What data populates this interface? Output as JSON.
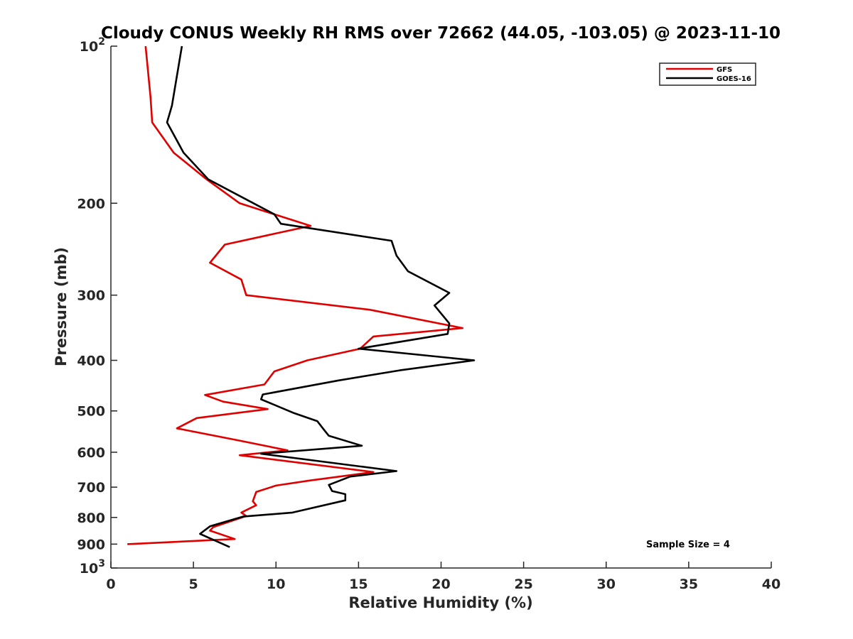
{
  "chart_data": {
    "type": "line",
    "title": "Cloudy CONUS Weekly RH RMS over 72662 (44.05, -103.05) @ 2023-11-10",
    "xlabel": "Relative Humidity (%)",
    "ylabel": "Pressure (mb)",
    "xlim": [
      0,
      40
    ],
    "ylim": [
      100,
      1000
    ],
    "y_scale": "log",
    "y_reversed": true,
    "x_ticks": [
      0,
      5,
      10,
      15,
      20,
      25,
      30,
      35,
      40
    ],
    "x_tick_labels": [
      "0",
      "5",
      "10",
      "15",
      "20",
      "25",
      "30",
      "35",
      "40"
    ],
    "y_ticks": [
      100,
      200,
      300,
      400,
      500,
      600,
      700,
      800,
      900,
      1000
    ],
    "y_tick_labels": [
      {
        "base": "10",
        "exp": "2"
      },
      {
        "base": "200",
        "exp": ""
      },
      {
        "base": "300",
        "exp": ""
      },
      {
        "base": "400",
        "exp": ""
      },
      {
        "base": "500",
        "exp": ""
      },
      {
        "base": "600",
        "exp": ""
      },
      {
        "base": "700",
        "exp": ""
      },
      {
        "base": "800",
        "exp": ""
      },
      {
        "base": "900",
        "exp": ""
      },
      {
        "base": "10",
        "exp": "3"
      }
    ],
    "grid": false,
    "legend_position": "top-right",
    "annotation": "Sample Size = 4",
    "series": [
      {
        "name": "GFS",
        "color": "#e00000",
        "points": [
          [
            2.1,
            100
          ],
          [
            2.4,
            125
          ],
          [
            2.5,
            140
          ],
          [
            3.8,
            160
          ],
          [
            5.8,
            180
          ],
          [
            7.8,
            200
          ],
          [
            12.1,
            221
          ],
          [
            6.9,
            240
          ],
          [
            6.0,
            260
          ],
          [
            7.9,
            280
          ],
          [
            8.2,
            300
          ],
          [
            15.7,
            320
          ],
          [
            21.3,
            347
          ],
          [
            15.9,
            360
          ],
          [
            15.1,
            380
          ],
          [
            11.9,
            400
          ],
          [
            9.9,
            420
          ],
          [
            9.3,
            445
          ],
          [
            5.7,
            466
          ],
          [
            6.8,
            480
          ],
          [
            9.5,
            496
          ],
          [
            5.2,
            516
          ],
          [
            4.0,
            540
          ],
          [
            7.8,
            570
          ],
          [
            10.7,
            595
          ],
          [
            7.8,
            608
          ],
          [
            15.9,
            655
          ],
          [
            12.0,
            680
          ],
          [
            10.0,
            695
          ],
          [
            8.8,
            715
          ],
          [
            8.6,
            745
          ],
          [
            8.8,
            758
          ],
          [
            7.9,
            783
          ],
          [
            8.2,
            795
          ],
          [
            6.2,
            835
          ],
          [
            6.0,
            848
          ],
          [
            7.5,
            880
          ],
          [
            1.0,
            900
          ]
        ]
      },
      {
        "name": "GOES-16",
        "color": "#000000",
        "points": [
          [
            4.3,
            100
          ],
          [
            3.7,
            130
          ],
          [
            3.4,
            140
          ],
          [
            4.4,
            160
          ],
          [
            5.9,
            180
          ],
          [
            9.9,
            210
          ],
          [
            10.3,
            219
          ],
          [
            17.0,
            236
          ],
          [
            17.3,
            252
          ],
          [
            18.0,
            270
          ],
          [
            20.5,
            297
          ],
          [
            19.6,
            314
          ],
          [
            20.5,
            340
          ],
          [
            20.4,
            356
          ],
          [
            15.0,
            380
          ],
          [
            22.0,
            400
          ],
          [
            17.5,
            418
          ],
          [
            13.8,
            437
          ],
          [
            9.2,
            465
          ],
          [
            9.1,
            475
          ],
          [
            11.1,
            505
          ],
          [
            12.5,
            523
          ],
          [
            12.9,
            543
          ],
          [
            13.2,
            558
          ],
          [
            15.2,
            583
          ],
          [
            9.1,
            604
          ],
          [
            17.3,
            652
          ],
          [
            14.5,
            668
          ],
          [
            13.2,
            693
          ],
          [
            13.4,
            712
          ],
          [
            14.2,
            722
          ],
          [
            14.2,
            742
          ],
          [
            11.0,
            783
          ],
          [
            8.0,
            797
          ],
          [
            6.0,
            832
          ],
          [
            5.4,
            860
          ],
          [
            7.2,
            912
          ]
        ]
      }
    ]
  }
}
